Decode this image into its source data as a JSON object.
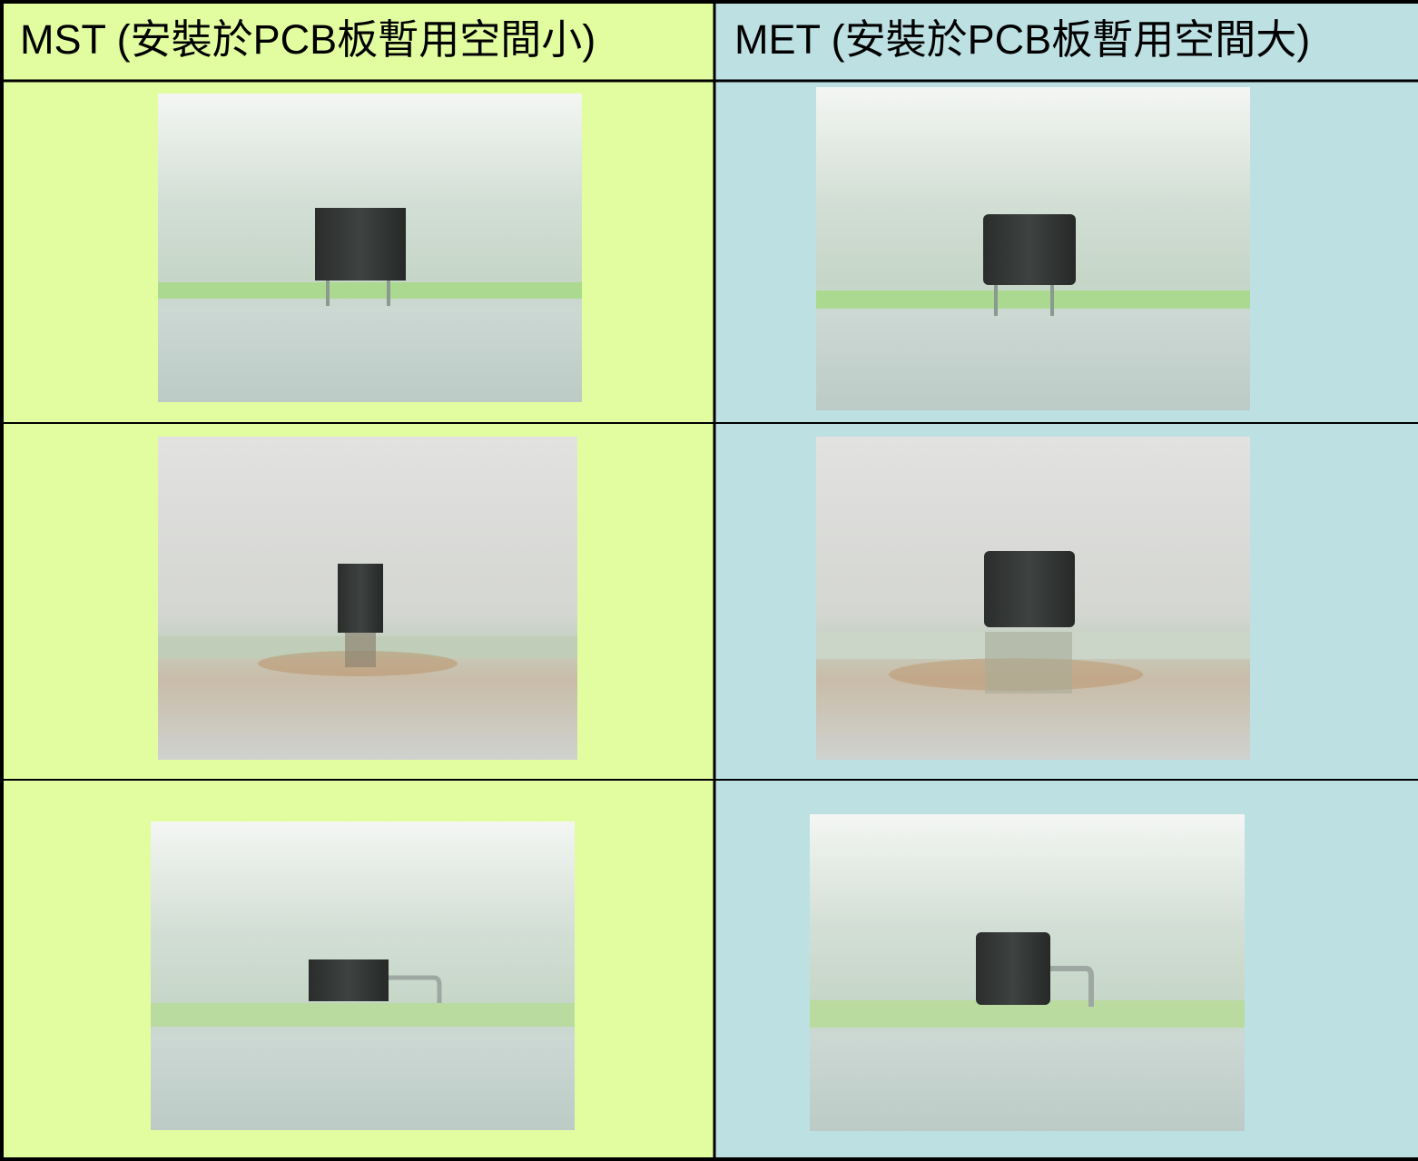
{
  "header": {
    "columns": [
      "MST (安裝於PCB板暫用空間小)",
      "MET (安裝於PCB板暫用空間大)"
    ]
  }
}
